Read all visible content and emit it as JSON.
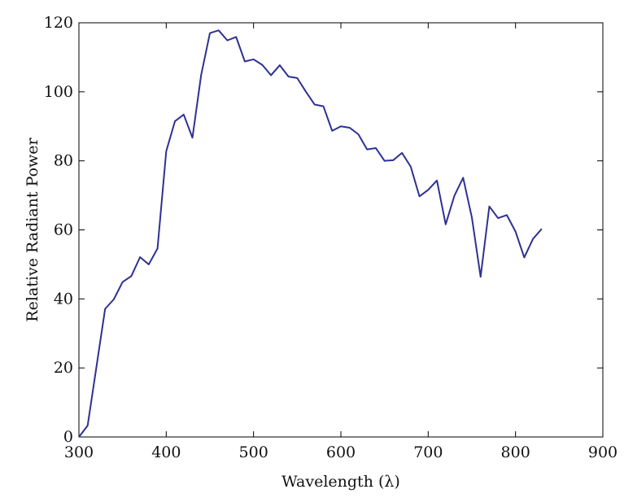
{
  "chart_data": {
    "type": "line",
    "title": "",
    "xlabel": "Wavelength (λ)",
    "ylabel": "Relative Radiant Power",
    "xlim": [
      300,
      900
    ],
    "ylim": [
      0,
      120
    ],
    "xticks": [
      300,
      400,
      500,
      600,
      700,
      800,
      900
    ],
    "yticks": [
      0,
      20,
      40,
      60,
      80,
      100,
      120
    ],
    "grid": false,
    "legend": "none",
    "series": [
      {
        "color": "#2e3192",
        "x": [
          300,
          310,
          320,
          330,
          340,
          350,
          360,
          370,
          380,
          390,
          400,
          410,
          420,
          430,
          440,
          450,
          460,
          470,
          480,
          490,
          500,
          510,
          520,
          530,
          540,
          550,
          560,
          570,
          580,
          590,
          600,
          610,
          620,
          630,
          640,
          650,
          660,
          670,
          680,
          690,
          700,
          710,
          720,
          730,
          740,
          750,
          760,
          770,
          780,
          790,
          800,
          810,
          820,
          830
        ],
        "y": [
          0.0,
          3.3,
          20.2,
          37.1,
          39.9,
          44.9,
          46.6,
          52.1,
          50.0,
          54.6,
          82.8,
          91.5,
          93.4,
          86.7,
          104.9,
          117.0,
          117.8,
          114.9,
          115.9,
          108.8,
          109.4,
          107.8,
          104.8,
          107.7,
          104.4,
          104.0,
          100.0,
          96.3,
          95.8,
          88.7,
          90.0,
          89.6,
          87.7,
          83.3,
          83.7,
          80.0,
          80.2,
          82.3,
          78.3,
          69.7,
          71.6,
          74.3,
          61.6,
          69.9,
          75.1,
          63.6,
          46.4,
          66.8,
          63.4,
          64.3,
          59.5,
          52.0,
          57.4,
          60.3
        ]
      }
    ]
  }
}
